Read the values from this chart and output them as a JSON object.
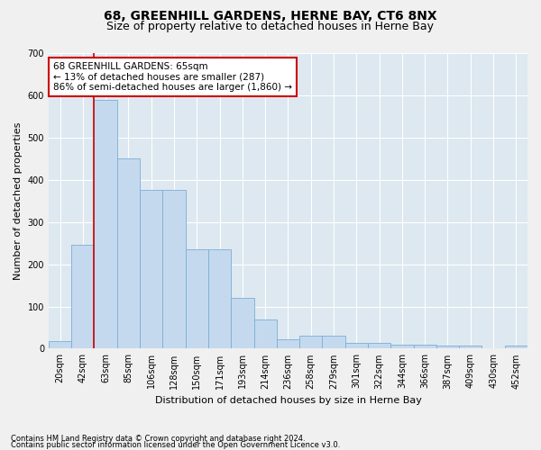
{
  "title_line1": "68, GREENHILL GARDENS, HERNE BAY, CT6 8NX",
  "title_line2": "Size of property relative to detached houses in Herne Bay",
  "xlabel": "Distribution of detached houses by size in Herne Bay",
  "ylabel": "Number of detached properties",
  "footnote1": "Contains HM Land Registry data © Crown copyright and database right 2024.",
  "footnote2": "Contains public sector information licensed under the Open Government Licence v3.0.",
  "bar_labels": [
    "20sqm",
    "42sqm",
    "63sqm",
    "85sqm",
    "106sqm",
    "128sqm",
    "150sqm",
    "171sqm",
    "193sqm",
    "214sqm",
    "236sqm",
    "258sqm",
    "279sqm",
    "301sqm",
    "322sqm",
    "344sqm",
    "366sqm",
    "387sqm",
    "409sqm",
    "430sqm",
    "452sqm"
  ],
  "bar_values": [
    18,
    245,
    590,
    450,
    375,
    375,
    235,
    235,
    120,
    70,
    22,
    30,
    30,
    14,
    14,
    9,
    9,
    7,
    7,
    0,
    8
  ],
  "bar_color": "#c5d9ee",
  "bar_edgecolor": "#7aaed6",
  "vline_color": "#cc0000",
  "annotation_text": "68 GREENHILL GARDENS: 65sqm\n← 13% of detached houses are smaller (287)\n86% of semi-detached houses are larger (1,860) →",
  "annotation_box_color": "#ffffff",
  "annotation_box_edgecolor": "#cc0000",
  "ylim": [
    0,
    700
  ],
  "yticks": [
    0,
    100,
    200,
    300,
    400,
    500,
    600,
    700
  ],
  "plot_bg_color": "#dde8f0",
  "grid_color": "#ffffff",
  "fig_bg_color": "#f0f0f0",
  "title_fontsize": 10,
  "subtitle_fontsize": 9,
  "axis_label_fontsize": 8,
  "tick_fontsize": 7,
  "annotation_fontsize": 7.5,
  "footnote_fontsize": 6
}
